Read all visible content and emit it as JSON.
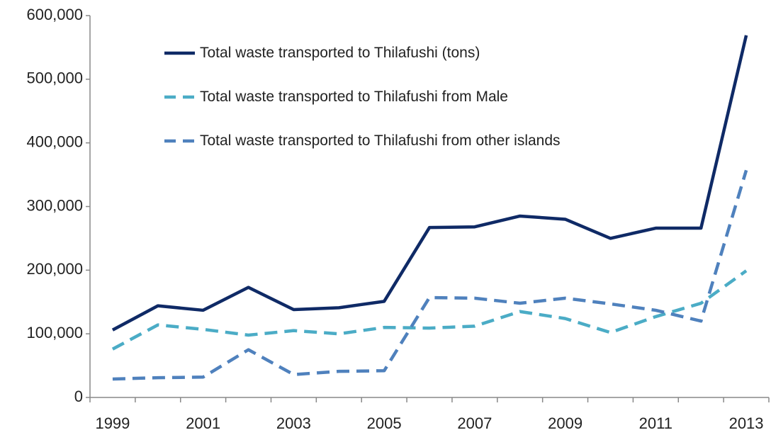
{
  "chart_data": {
    "type": "line",
    "categories": [
      "1999",
      null,
      "2001",
      null,
      "2003",
      null,
      "2005",
      null,
      "2007",
      null,
      "2009",
      null,
      "2011",
      null,
      "2013"
    ],
    "series": [
      {
        "name": "Total waste transported to Thilafushi (tons)",
        "color": "#0f2a66",
        "line_style": "solid",
        "values": [
          106000,
          144000,
          137000,
          173000,
          138000,
          141000,
          151000,
          267000,
          268000,
          285000,
          280000,
          250000,
          266000,
          266000,
          569000
        ]
      },
      {
        "name": "Total waste transported to Thilafushi from Male",
        "color": "#4bacc6",
        "line_style": "dashed",
        "values": [
          76000,
          114000,
          107000,
          98000,
          105000,
          100000,
          110000,
          109000,
          112000,
          135000,
          124000,
          102000,
          127000,
          148000,
          199000
        ]
      },
      {
        "name": "Total waste transported to Thilafushi from other islands",
        "color": "#4f81bd",
        "line_style": "dashed",
        "values": [
          29000,
          31000,
          32000,
          75000,
          36000,
          41000,
          42000,
          157000,
          156000,
          148000,
          156000,
          147000,
          137000,
          120000,
          357000
        ]
      }
    ],
    "ylim": [
      0,
      600000
    ],
    "yticks": [
      0,
      {
        "value": 100000,
        "label": "100,000"
      },
      {
        "value": 200000,
        "label": "200,000"
      },
      {
        "value": 300000,
        "label": "300,000"
      },
      {
        "value": 400000,
        "label": "400,000"
      },
      {
        "value": 500000,
        "label": "500,000"
      },
      {
        "value": 600000,
        "label": "600,000"
      }
    ],
    "grid": false,
    "legend": "top"
  }
}
